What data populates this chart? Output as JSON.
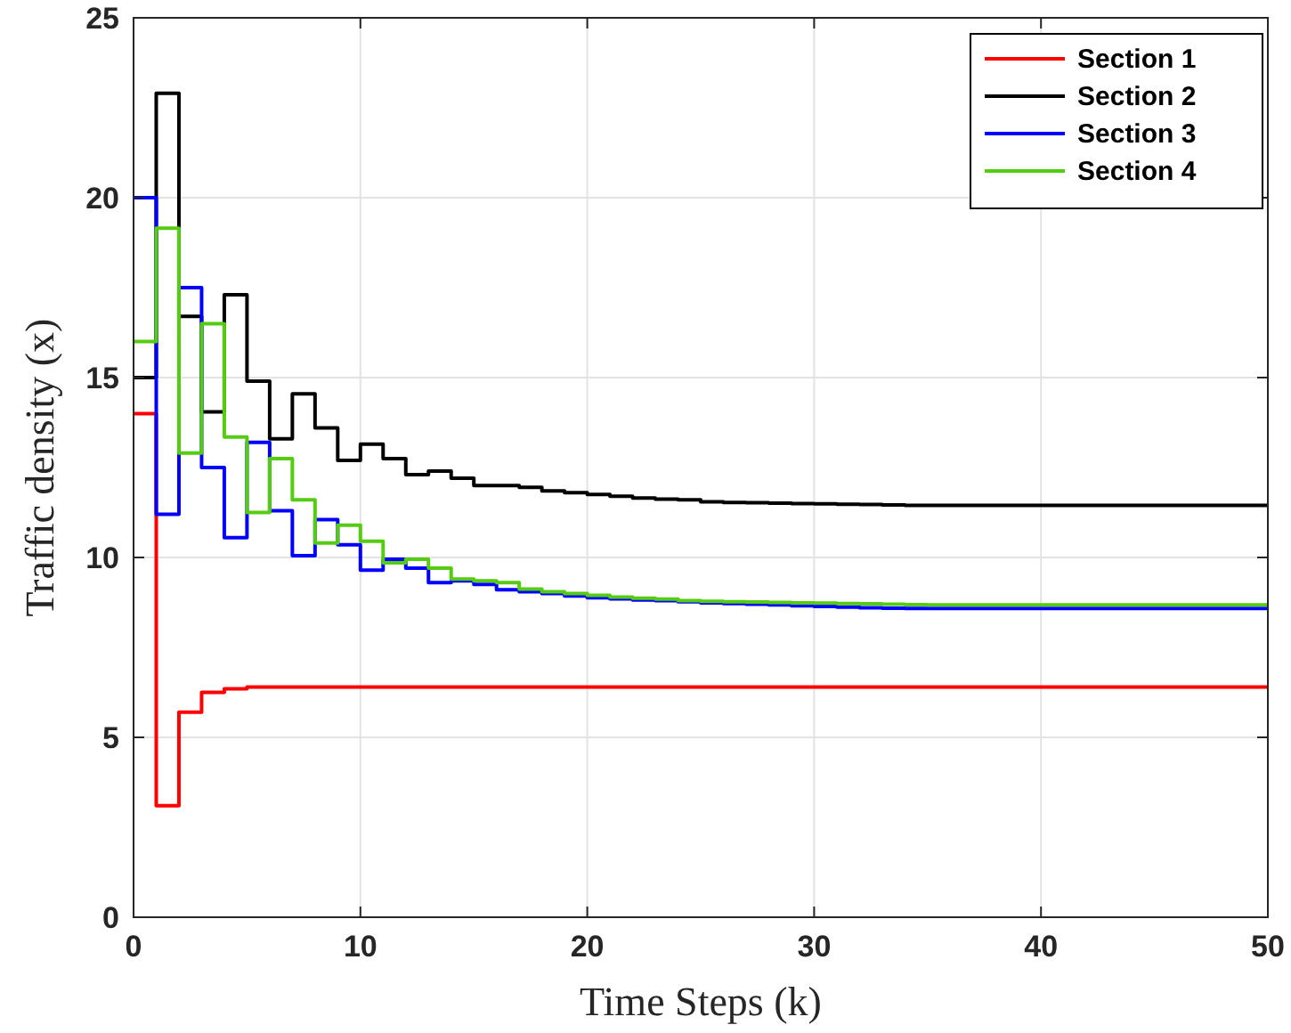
{
  "chart_data": {
    "type": "step",
    "xlabel": "Time Steps (k)",
    "ylabel": "Traffic density (x)",
    "x": [
      0,
      1,
      2,
      3,
      4,
      5,
      6,
      7,
      8,
      9,
      10,
      11,
      12,
      13,
      14,
      15,
      16,
      17,
      18,
      19,
      20,
      21,
      22,
      23,
      24,
      25,
      26,
      27,
      28,
      29,
      30,
      31,
      32,
      33,
      34,
      35,
      36,
      37,
      38,
      39,
      40,
      41,
      42,
      43,
      44,
      45,
      46,
      47,
      48,
      49,
      50
    ],
    "xlim": [
      0,
      50
    ],
    "xticks": [
      0,
      10,
      20,
      30,
      40,
      50
    ],
    "ylim": [
      0,
      25
    ],
    "yticks": [
      0,
      5,
      10,
      15,
      20,
      25
    ],
    "grid": true,
    "legend": "top right",
    "line_style": "solid",
    "marker": "none",
    "series": [
      {
        "name": "Section 1",
        "color": "#ff0000",
        "values": [
          14,
          3.1,
          5.7,
          6.25,
          6.35,
          6.4,
          6.4,
          6.4,
          6.4,
          6.4,
          6.4,
          6.4,
          6.4,
          6.4,
          6.4,
          6.4,
          6.4,
          6.4,
          6.4,
          6.4,
          6.4,
          6.4,
          6.4,
          6.4,
          6.4,
          6.4,
          6.4,
          6.4,
          6.4,
          6.4,
          6.4,
          6.4,
          6.4,
          6.4,
          6.4,
          6.4,
          6.4,
          6.4,
          6.4,
          6.4,
          6.4,
          6.4,
          6.4,
          6.4,
          6.4,
          6.4,
          6.4,
          6.4,
          6.4,
          6.4,
          6.4
        ]
      },
      {
        "name": "Section 2",
        "color": "#000000",
        "values": [
          15,
          22.9,
          16.7,
          14.05,
          17.3,
          14.9,
          13.3,
          14.55,
          13.6,
          12.7,
          13.15,
          12.75,
          12.3,
          12.4,
          12.2,
          12.0,
          12.0,
          11.95,
          11.85,
          11.8,
          11.75,
          11.7,
          11.65,
          11.62,
          11.6,
          11.55,
          11.53,
          11.52,
          11.51,
          11.5,
          11.49,
          11.48,
          11.47,
          11.46,
          11.45,
          11.45,
          11.45,
          11.45,
          11.45,
          11.45,
          11.45,
          11.45,
          11.45,
          11.45,
          11.45,
          11.45,
          11.45,
          11.45,
          11.45,
          11.45,
          11.45
        ]
      },
      {
        "name": "Section 3",
        "color": "#0000ff",
        "values": [
          20,
          11.2,
          17.5,
          12.5,
          10.55,
          13.2,
          11.3,
          10.05,
          11.05,
          10.35,
          9.65,
          9.95,
          9.7,
          9.3,
          9.35,
          9.25,
          9.1,
          9.05,
          9.0,
          8.93,
          8.88,
          8.85,
          8.82,
          8.8,
          8.77,
          8.74,
          8.72,
          8.7,
          8.68,
          8.66,
          8.64,
          8.62,
          8.6,
          8.59,
          8.58,
          8.58,
          8.58,
          8.58,
          8.58,
          8.58,
          8.58,
          8.58,
          8.58,
          8.58,
          8.58,
          8.58,
          8.58,
          8.58,
          8.58,
          8.58,
          8.58
        ]
      },
      {
        "name": "Section 4",
        "color": "#55cc11",
        "values": [
          16,
          19.15,
          12.9,
          16.5,
          13.35,
          11.25,
          12.75,
          11.6,
          10.4,
          10.9,
          10.45,
          9.85,
          9.95,
          9.7,
          9.4,
          9.35,
          9.3,
          9.12,
          9.05,
          9.0,
          8.95,
          8.9,
          8.87,
          8.84,
          8.8,
          8.78,
          8.77,
          8.76,
          8.75,
          8.74,
          8.73,
          8.72,
          8.71,
          8.7,
          8.69,
          8.68,
          8.68,
          8.68,
          8.68,
          8.68,
          8.68,
          8.68,
          8.68,
          8.68,
          8.68,
          8.68,
          8.68,
          8.68,
          8.68,
          8.68,
          8.68
        ]
      }
    ]
  }
}
